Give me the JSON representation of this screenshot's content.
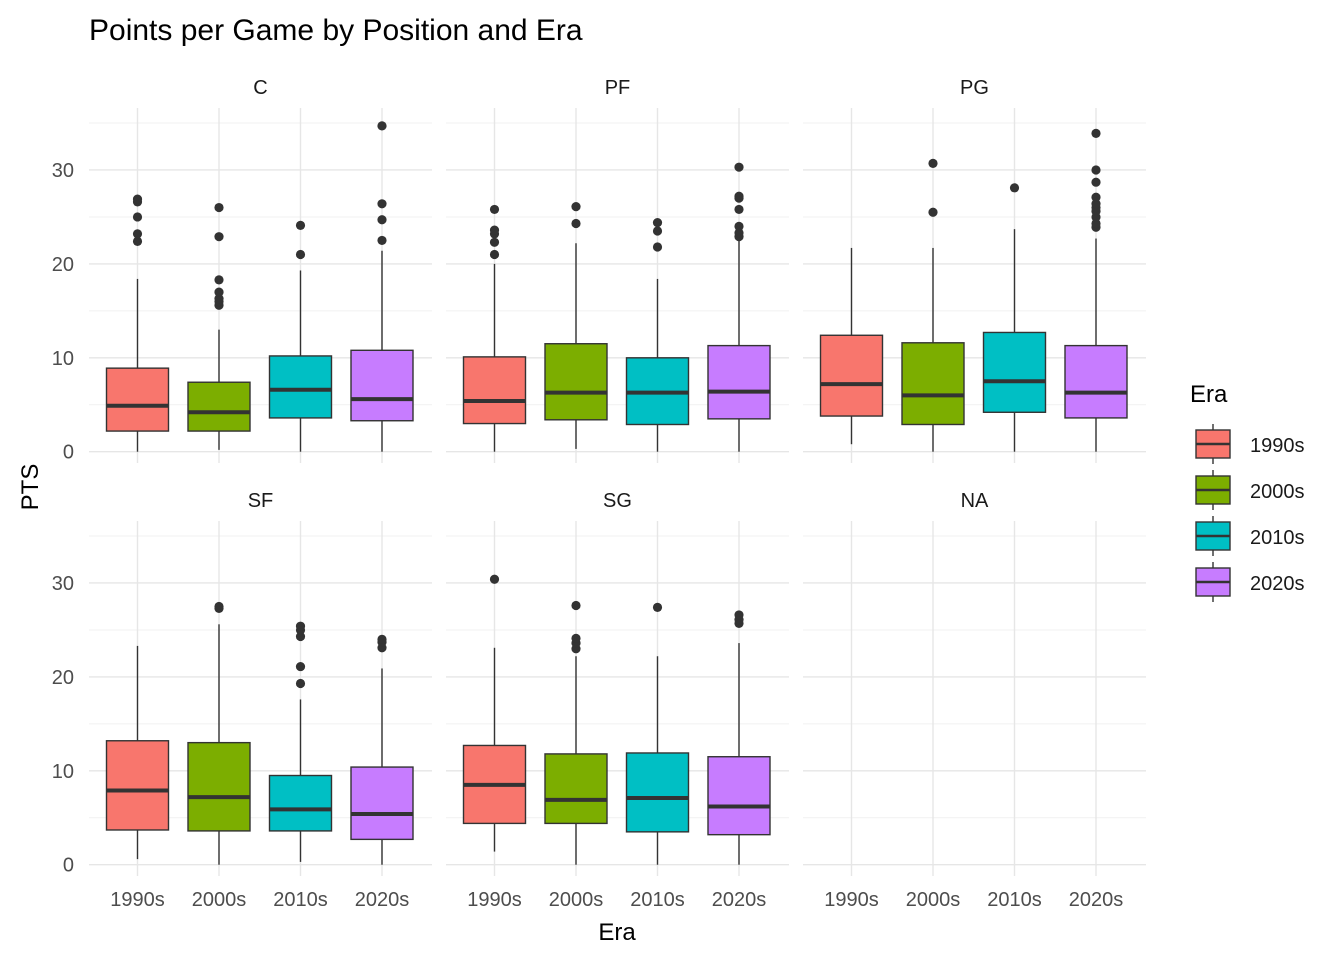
{
  "chart_data": {
    "type": "box",
    "title": "Points per Game by Position and Era",
    "xlabel": "Era",
    "ylabel": "PTS",
    "ylim": [
      -1.2,
      36.6
    ],
    "y_ticks": [
      0,
      10,
      20,
      30
    ],
    "categories": [
      "1990s",
      "2000s",
      "2010s",
      "2020s"
    ],
    "legend": {
      "title": "Era",
      "position": "right",
      "items": [
        {
          "label": "1990s",
          "color": "#F8766D"
        },
        {
          "label": "2000s",
          "color": "#7CAE00"
        },
        {
          "label": "2010s",
          "color": "#00BFC4"
        },
        {
          "label": "2020s",
          "color": "#C77CFF"
        }
      ]
    },
    "panels": [
      {
        "name": "C",
        "boxes": [
          {
            "era": "1990s",
            "min": 0,
            "q1": 2.2,
            "median": 4.9,
            "q3": 8.9,
            "max": 18.4,
            "outliers": [
              22.4,
              23.2,
              25.0,
              26.6,
              26.9
            ]
          },
          {
            "era": "2000s",
            "min": 0.2,
            "q1": 2.2,
            "median": 4.2,
            "q3": 7.4,
            "max": 13.0,
            "outliers": [
              15.6,
              16.0,
              16.3,
              17.0,
              18.3,
              22.9,
              26.0
            ]
          },
          {
            "era": "2010s",
            "min": 0,
            "q1": 3.6,
            "median": 6.6,
            "q3": 10.2,
            "max": 19.3,
            "outliers": [
              21.0,
              24.1
            ]
          },
          {
            "era": "2020s",
            "min": 0,
            "q1": 3.3,
            "median": 5.6,
            "q3": 10.8,
            "max": 21.4,
            "outliers": [
              22.5,
              24.7,
              26.4,
              34.7
            ]
          }
        ]
      },
      {
        "name": "PF",
        "boxes": [
          {
            "era": "1990s",
            "min": 0,
            "q1": 3.0,
            "median": 5.4,
            "q3": 10.1,
            "max": 20.0,
            "outliers": [
              21.0,
              22.3,
              23.2,
              23.6,
              25.8
            ]
          },
          {
            "era": "2000s",
            "min": 0.3,
            "q1": 3.4,
            "median": 6.3,
            "q3": 11.5,
            "max": 22.2,
            "outliers": [
              24.3,
              26.1
            ]
          },
          {
            "era": "2010s",
            "min": 0,
            "q1": 2.9,
            "median": 6.3,
            "q3": 10.0,
            "max": 18.4,
            "outliers": [
              21.8,
              23.5,
              24.4
            ]
          },
          {
            "era": "2020s",
            "min": 0,
            "q1": 3.5,
            "median": 6.4,
            "q3": 11.3,
            "max": 22.7,
            "outliers": [
              22.9,
              23.3,
              24.0,
              25.8,
              27.0,
              27.2,
              30.3
            ]
          }
        ]
      },
      {
        "name": "PG",
        "boxes": [
          {
            "era": "1990s",
            "min": 0.8,
            "q1": 3.8,
            "median": 7.2,
            "q3": 12.4,
            "max": 21.7,
            "outliers": []
          },
          {
            "era": "2000s",
            "min": 0,
            "q1": 2.9,
            "median": 6.0,
            "q3": 11.6,
            "max": 21.7,
            "outliers": [
              25.5,
              30.7
            ]
          },
          {
            "era": "2010s",
            "min": 0,
            "q1": 4.2,
            "median": 7.5,
            "q3": 12.7,
            "max": 23.7,
            "outliers": [
              28.1
            ]
          },
          {
            "era": "2020s",
            "min": 0,
            "q1": 3.6,
            "median": 6.3,
            "q3": 11.3,
            "max": 22.7,
            "outliers": [
              23.9,
              24.3,
              25.0,
              25.6,
              26.0,
              26.4,
              27.1,
              28.7,
              30.0,
              33.9
            ]
          }
        ]
      },
      {
        "name": "SF",
        "boxes": [
          {
            "era": "1990s",
            "min": 0.6,
            "q1": 3.7,
            "median": 7.9,
            "q3": 13.2,
            "max": 23.3,
            "outliers": []
          },
          {
            "era": "2000s",
            "min": 0,
            "q1": 3.6,
            "median": 7.2,
            "q3": 13.0,
            "max": 25.6,
            "outliers": [
              27.3,
              27.5
            ]
          },
          {
            "era": "2010s",
            "min": 0.3,
            "q1": 3.6,
            "median": 5.9,
            "q3": 9.5,
            "max": 17.6,
            "outliers": [
              19.3,
              21.1,
              24.3,
              25.0,
              25.4
            ]
          },
          {
            "era": "2020s",
            "min": 0,
            "q1": 2.7,
            "median": 5.4,
            "q3": 10.4,
            "max": 20.9,
            "outliers": [
              23.1,
              23.7,
              24.0
            ]
          }
        ]
      },
      {
        "name": "SG",
        "boxes": [
          {
            "era": "1990s",
            "min": 1.4,
            "q1": 4.4,
            "median": 8.5,
            "q3": 12.7,
            "max": 23.1,
            "outliers": [
              30.4
            ]
          },
          {
            "era": "2000s",
            "min": 0,
            "q1": 4.4,
            "median": 6.9,
            "q3": 11.8,
            "max": 22.2,
            "outliers": [
              23.0,
              23.6,
              24.1,
              27.6
            ]
          },
          {
            "era": "2010s",
            "min": 0,
            "q1": 3.5,
            "median": 7.1,
            "q3": 11.9,
            "max": 22.2,
            "outliers": [
              27.4
            ]
          },
          {
            "era": "2020s",
            "min": 0,
            "q1": 3.2,
            "median": 6.2,
            "q3": 11.5,
            "max": 23.6,
            "outliers": [
              25.7,
              26.1,
              26.6
            ]
          }
        ]
      },
      {
        "name": "NA",
        "boxes": []
      }
    ]
  }
}
